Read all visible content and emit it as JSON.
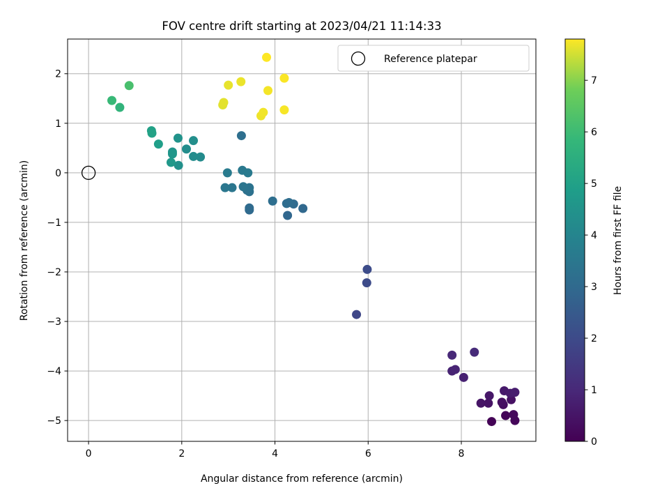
{
  "chart_data": {
    "type": "scatter",
    "title": "FOV centre drift starting at 2023/04/21 11:14:33",
    "xlabel": "Angular distance from reference (arcmin)",
    "ylabel": "Rotation from reference (arcmin)",
    "xlim": [
      -0.45,
      9.6
    ],
    "ylim": [
      -5.42,
      2.7
    ],
    "x_ticks": [
      0,
      2,
      4,
      6,
      8
    ],
    "y_ticks": [
      -5,
      -4,
      -3,
      -2,
      -1,
      0,
      1,
      2
    ],
    "grid": true,
    "legend": {
      "position": "top-right",
      "entries": [
        "Reference platepar"
      ]
    },
    "reference_point": {
      "name": "Reference platepar",
      "x": 0,
      "y": 0
    },
    "colorbar": {
      "label": "Hours from first FF file",
      "range": [
        0,
        7.8
      ],
      "ticks": [
        0,
        1,
        2,
        3,
        4,
        5,
        6,
        7
      ],
      "colormap": "viridis"
    },
    "points": [
      {
        "x": 8.65,
        "y": -5.02,
        "h": 0.05
      },
      {
        "x": 8.95,
        "y": -4.9,
        "h": 0.1
      },
      {
        "x": 9.15,
        "y": -5.0,
        "h": 0.15
      },
      {
        "x": 9.12,
        "y": -4.88,
        "h": 0.2
      },
      {
        "x": 8.9,
        "y": -4.68,
        "h": 0.3
      },
      {
        "x": 8.87,
        "y": -4.63,
        "h": 0.35
      },
      {
        "x": 9.07,
        "y": -4.58,
        "h": 0.4
      },
      {
        "x": 8.58,
        "y": -4.65,
        "h": 0.45
      },
      {
        "x": 8.42,
        "y": -4.65,
        "h": 0.5
      },
      {
        "x": 8.6,
        "y": -4.5,
        "h": 0.55
      },
      {
        "x": 8.92,
        "y": -4.4,
        "h": 0.6
      },
      {
        "x": 9.05,
        "y": -4.45,
        "h": 0.65
      },
      {
        "x": 9.15,
        "y": -4.43,
        "h": 0.7
      },
      {
        "x": 8.05,
        "y": -4.13,
        "h": 0.8
      },
      {
        "x": 7.8,
        "y": -4.0,
        "h": 0.85
      },
      {
        "x": 7.87,
        "y": -3.97,
        "h": 0.9
      },
      {
        "x": 7.8,
        "y": -3.68,
        "h": 1.0
      },
      {
        "x": 8.28,
        "y": -3.62,
        "h": 1.05
      },
      {
        "x": 5.75,
        "y": -2.86,
        "h": 1.9
      },
      {
        "x": 5.97,
        "y": -2.22,
        "h": 2.0
      },
      {
        "x": 5.98,
        "y": -1.95,
        "h": 2.05
      },
      {
        "x": 4.27,
        "y": -0.86,
        "h": 2.9
      },
      {
        "x": 4.6,
        "y": -0.72,
        "h": 2.95
      },
      {
        "x": 3.45,
        "y": -0.75,
        "h": 3.0
      },
      {
        "x": 3.45,
        "y": -0.71,
        "h": 3.05
      },
      {
        "x": 4.4,
        "y": -0.63,
        "h": 3.05
      },
      {
        "x": 4.25,
        "y": -0.62,
        "h": 3.1
      },
      {
        "x": 4.3,
        "y": -0.6,
        "h": 3.1
      },
      {
        "x": 3.95,
        "y": -0.57,
        "h": 3.15
      },
      {
        "x": 3.45,
        "y": -0.38,
        "h": 3.25
      },
      {
        "x": 3.4,
        "y": -0.35,
        "h": 3.3
      },
      {
        "x": 3.45,
        "y": -0.3,
        "h": 3.35
      },
      {
        "x": 3.32,
        "y": -0.28,
        "h": 3.4
      },
      {
        "x": 3.08,
        "y": -0.3,
        "h": 3.45
      },
      {
        "x": 2.93,
        "y": -0.3,
        "h": 3.5
      },
      {
        "x": 3.3,
        "y": 0.05,
        "h": 3.55
      },
      {
        "x": 3.42,
        "y": 0.0,
        "h": 3.6
      },
      {
        "x": 2.98,
        "y": 0.0,
        "h": 3.65
      },
      {
        "x": 3.28,
        "y": 0.75,
        "h": 3.2
      },
      {
        "x": 2.4,
        "y": 0.32,
        "h": 4.2
      },
      {
        "x": 2.25,
        "y": 0.33,
        "h": 4.25
      },
      {
        "x": 2.1,
        "y": 0.48,
        "h": 4.3
      },
      {
        "x": 1.93,
        "y": 0.15,
        "h": 4.4
      },
      {
        "x": 2.25,
        "y": 0.65,
        "h": 4.35
      },
      {
        "x": 1.92,
        "y": 0.7,
        "h": 4.5
      },
      {
        "x": 1.8,
        "y": 0.42,
        "h": 4.55
      },
      {
        "x": 1.8,
        "y": 0.38,
        "h": 4.6
      },
      {
        "x": 1.77,
        "y": 0.21,
        "h": 4.65
      },
      {
        "x": 1.5,
        "y": 0.58,
        "h": 4.9
      },
      {
        "x": 1.35,
        "y": 0.85,
        "h": 5.0
      },
      {
        "x": 1.36,
        "y": 0.8,
        "h": 5.05
      },
      {
        "x": 0.67,
        "y": 1.32,
        "h": 5.7
      },
      {
        "x": 0.5,
        "y": 1.46,
        "h": 5.9
      },
      {
        "x": 0.87,
        "y": 1.76,
        "h": 6.2
      },
      {
        "x": 2.88,
        "y": 1.37,
        "h": 7.6
      },
      {
        "x": 2.9,
        "y": 1.42,
        "h": 7.62
      },
      {
        "x": 3.0,
        "y": 1.77,
        "h": 7.65
      },
      {
        "x": 3.27,
        "y": 1.84,
        "h": 7.68
      },
      {
        "x": 3.7,
        "y": 1.15,
        "h": 7.7
      },
      {
        "x": 3.75,
        "y": 1.22,
        "h": 7.72
      },
      {
        "x": 3.85,
        "y": 1.66,
        "h": 7.74
      },
      {
        "x": 4.2,
        "y": 1.27,
        "h": 7.76
      },
      {
        "x": 4.2,
        "y": 1.91,
        "h": 7.78
      },
      {
        "x": 3.82,
        "y": 2.33,
        "h": 7.8
      }
    ]
  }
}
